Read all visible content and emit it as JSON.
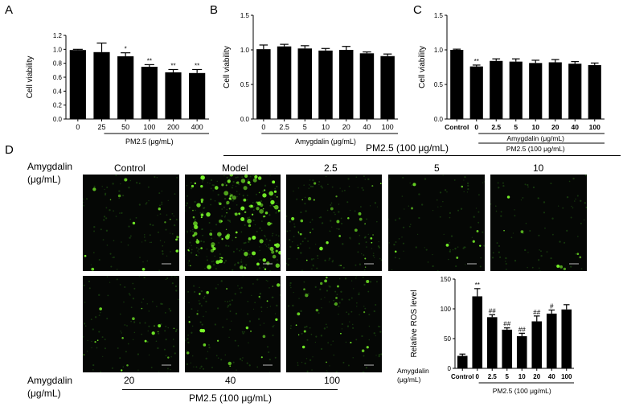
{
  "panels": {
    "A": "A",
    "B": "B",
    "C": "C",
    "D": "D"
  },
  "chart_data": [
    {
      "id": "A",
      "type": "bar",
      "ylabel": "Cell viability",
      "ylim": [
        0,
        1.2
      ],
      "yticks": [
        "0.0",
        "0.2",
        "0.4",
        "0.6",
        "0.8",
        "1.0",
        "1.2"
      ],
      "categories": [
        "0",
        "25",
        "50",
        "100",
        "200",
        "400"
      ],
      "values": [
        0.99,
        0.96,
        0.9,
        0.75,
        0.67,
        0.66
      ],
      "errors": [
        0.01,
        0.13,
        0.05,
        0.03,
        0.04,
        0.05
      ],
      "annotations": [
        "",
        "",
        "*",
        "**",
        "**",
        "**"
      ],
      "xlabel": "PM2.5 (μg/mL)"
    },
    {
      "id": "B",
      "type": "bar",
      "ylabel": "Cell viability",
      "ylim": [
        0,
        1.5
      ],
      "yticks": [
        "0.0",
        "0.5",
        "1.0",
        "1.5"
      ],
      "categories": [
        "0",
        "2.5",
        "5",
        "10",
        "20",
        "40",
        "100"
      ],
      "values": [
        1.01,
        1.05,
        1.02,
        0.99,
        1.0,
        0.95,
        0.91
      ],
      "errors": [
        0.06,
        0.03,
        0.04,
        0.03,
        0.05,
        0.02,
        0.03
      ],
      "annotations": [
        "",
        "",
        "",
        "",
        "",
        "",
        ""
      ],
      "xlabel": "Amygdalin (μg/mL)"
    },
    {
      "id": "C",
      "type": "bar",
      "ylabel": "Cell viability",
      "ylim": [
        0,
        1.5
      ],
      "yticks": [
        "0.0",
        "0.5",
        "1.0",
        "1.5"
      ],
      "categories": [
        "Control",
        "0",
        "2.5",
        "5",
        "10",
        "20",
        "40",
        "100"
      ],
      "values": [
        1.0,
        0.76,
        0.84,
        0.83,
        0.81,
        0.82,
        0.8,
        0.78
      ],
      "errors": [
        0.01,
        0.02,
        0.03,
        0.04,
        0.04,
        0.04,
        0.03,
        0.03
      ],
      "annotations": [
        "",
        "**",
        "",
        "",
        "",
        "",
        "",
        ""
      ],
      "xlabel": "Amygdalin (μg/mL)",
      "xlabel2": "PM2.5 (100 μg/mL)"
    },
    {
      "id": "D-ROS",
      "type": "bar",
      "ylabel": "Relative ROS level",
      "ylim": [
        0,
        150
      ],
      "yticks": [
        "0",
        "50",
        "100",
        "150"
      ],
      "categories": [
        "Control",
        "0",
        "2.5",
        "5",
        "10",
        "20",
        "40",
        "100"
      ],
      "values": [
        21,
        121,
        86,
        65,
        54,
        79,
        92,
        99
      ],
      "errors": [
        3,
        13,
        4,
        3,
        5,
        9,
        6,
        8
      ],
      "annotations": [
        "",
        "**",
        "##",
        "##",
        "##",
        "##",
        "#",
        ""
      ],
      "row_label": [
        "Amygdalin",
        "(μg/mL)"
      ],
      "xlabel2": "PM2.5 (100 μg/mL)"
    }
  ],
  "micrographs": {
    "group_label": "PM2.5 (100 μg/mL)",
    "left_label_top": [
      "Amygdalin",
      "(μg/mL)"
    ],
    "left_label_bottom": [
      "Amygdalin",
      "(μg/mL)"
    ],
    "top_row": [
      "Control",
      "Model",
      "2.5",
      "5",
      "10"
    ],
    "bottom_row": [
      "20",
      "40",
      "100"
    ],
    "bottom_group_label": "PM2.5 (100 μg/mL)",
    "intensity": [
      0.25,
      1.0,
      0.45,
      0.15,
      0.12,
      0.3,
      0.35,
      0.35
    ],
    "fluorescence_color": "#7cff2a",
    "background_color": "#050705"
  }
}
